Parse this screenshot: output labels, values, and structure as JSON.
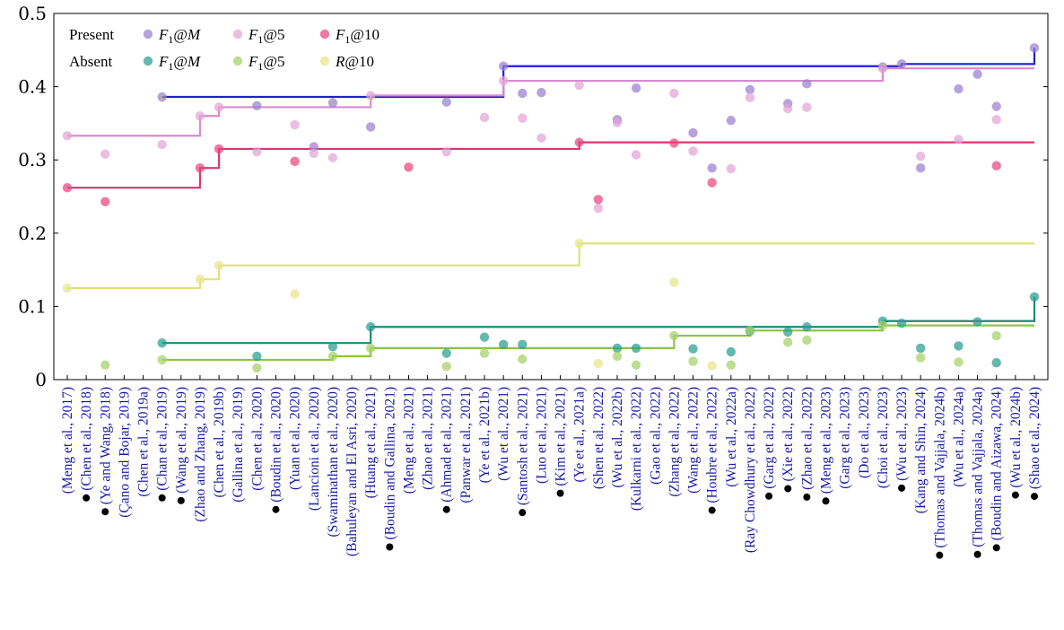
{
  "chart_data": {
    "type": "scatter",
    "title": "",
    "xlabel": "",
    "ylabel": "",
    "ylim": [
      0,
      0.5
    ],
    "yticks": [
      0,
      0.1,
      0.2,
      0.3,
      0.4,
      0.5
    ],
    "ytick_labels": [
      "0",
      "0.1",
      "0.2",
      "0.3",
      "0.4",
      "0.5"
    ],
    "grid": false,
    "legend_position": "top-left",
    "legend": {
      "rows": [
        {
          "label": "Present",
          "items": [
            {
              "series": "p_f1m",
              "text": "F1@M"
            },
            {
              "series": "p_f15",
              "text": "F1@5"
            },
            {
              "series": "p_f110",
              "text": "F1@10"
            }
          ]
        },
        {
          "label": "Absent",
          "items": [
            {
              "series": "a_f1m",
              "text": "F1@M"
            },
            {
              "series": "a_f15",
              "text": "F1@5"
            },
            {
              "series": "a_r10",
              "text": "R@10"
            }
          ]
        }
      ]
    },
    "categories": [
      "(Meng et al., 2017)",
      "(Chen et al., 2018)",
      "(Ye and Wang, 2018)",
      "(Çano and Bojar, 2019)",
      "(Chen et al., 2019a)",
      "(Chan et al., 2019)",
      "(Wang et al., 2019)",
      "(Zhao and Zhang, 2019)",
      "(Chen et al., 2019b)",
      "(Gallina et al., 2019)",
      "(Chen et al., 2020)",
      "(Boudin et al., 2020)",
      "(Yuan et al., 2020)",
      "(Lancioni et al., 2020)",
      "(Swaminathan et al., 2020)",
      "(Bahuleyan and El Asri, 2020)",
      "(Huang et al., 2021)",
      "(Boudin and Gallina, 2021)",
      "(Meng et al., 2021)",
      "(Zhao et al., 2021)",
      "(Ahmad et al., 2021)",
      "(Panwar et al., 2021)",
      "(Ye et al., 2021b)",
      "(Wu et al., 2021)",
      "(Santosh et al., 2021)",
      "(Luo et al., 2021)",
      "(Kim et al., 2021)",
      "(Ye et al., 2021a)",
      "(Shen et al., 2022)",
      "(Wu et al., 2022b)",
      "(Kulkarni et al., 2022)",
      "(Gao et al., 2022)",
      "(Zhang et al., 2022)",
      "(Wang et al., 2022)",
      "(Houbre et al., 2022)",
      "(Wu et al., 2022a)",
      "(Ray Chowdhury et al., 2022)",
      "(Garg et al., 2022)",
      "(Xie et al., 2022)",
      "(Zhao et al., 2022)",
      "(Meng et al., 2023)",
      "(Garg et al., 2023)",
      "(Do et al., 2023)",
      "(Choi et al., 2023)",
      "(Wu et al., 2023)",
      "(Kang and Shin, 2024)",
      "(Thomas and Vajjala, 2024b)",
      "(Wu et al., 2024a)",
      "(Thomas and Vajjala, 2024a)",
      "(Boudin and Aizawa, 2024)",
      "(Wu et al., 2024b)",
      "(Shao et al., 2024)"
    ],
    "marked_categories": [
      1,
      2,
      5,
      6,
      11,
      17,
      20,
      24,
      26,
      34,
      37,
      38,
      39,
      40,
      44,
      46,
      48,
      49,
      50,
      51
    ],
    "series": [
      {
        "key": "p_f1m",
        "group": "Present",
        "name": "F1@M",
        "color": "#9b7fcf",
        "points": [
          [
            5,
            0.386
          ],
          [
            10,
            0.374
          ],
          [
            13,
            0.318
          ],
          [
            14,
            0.378
          ],
          [
            16,
            0.345
          ],
          [
            20,
            0.379
          ],
          [
            23,
            0.428
          ],
          [
            24,
            0.391
          ],
          [
            25,
            0.392
          ],
          [
            29,
            0.355
          ],
          [
            30,
            0.398
          ],
          [
            33,
            0.337
          ],
          [
            34,
            0.289
          ],
          [
            35,
            0.354
          ],
          [
            36,
            0.396
          ],
          [
            38,
            0.377
          ],
          [
            39,
            0.404
          ],
          [
            43,
            0.427
          ],
          [
            44,
            0.431
          ],
          [
            45,
            0.289
          ],
          [
            47,
            0.397
          ],
          [
            48,
            0.417
          ],
          [
            49,
            0.373
          ],
          [
            51,
            0.453
          ]
        ],
        "frontier": [
          [
            5,
            0.386
          ],
          [
            23,
            0.428
          ],
          [
            44,
            0.431
          ],
          [
            51,
            0.453
          ]
        ]
      },
      {
        "key": "p_f15",
        "group": "Present",
        "name": "F1@5",
        "color": "#e3a3d6",
        "points": [
          [
            0,
            0.333
          ],
          [
            2,
            0.308
          ],
          [
            5,
            0.321
          ],
          [
            7,
            0.36
          ],
          [
            8,
            0.372
          ],
          [
            10,
            0.311
          ],
          [
            12,
            0.348
          ],
          [
            13,
            0.309
          ],
          [
            14,
            0.303
          ],
          [
            16,
            0.388
          ],
          [
            20,
            0.311
          ],
          [
            22,
            0.358
          ],
          [
            23,
            0.408
          ],
          [
            24,
            0.357
          ],
          [
            25,
            0.33
          ],
          [
            27,
            0.402
          ],
          [
            28,
            0.234
          ],
          [
            29,
            0.351
          ],
          [
            30,
            0.307
          ],
          [
            32,
            0.391
          ],
          [
            33,
            0.312
          ],
          [
            35,
            0.288
          ],
          [
            36,
            0.385
          ],
          [
            38,
            0.37
          ],
          [
            39,
            0.372
          ],
          [
            43,
            0.425
          ],
          [
            45,
            0.305
          ],
          [
            47,
            0.328
          ],
          [
            49,
            0.355
          ]
        ],
        "frontier": [
          [
            0,
            0.333
          ],
          [
            7,
            0.36
          ],
          [
            8,
            0.372
          ],
          [
            16,
            0.388
          ],
          [
            23,
            0.408
          ],
          [
            43,
            0.425
          ]
        ]
      },
      {
        "key": "p_f110",
        "group": "Present",
        "name": "F1@10",
        "color": "#e8457f",
        "points": [
          [
            0,
            0.262
          ],
          [
            2,
            0.243
          ],
          [
            7,
            0.289
          ],
          [
            8,
            0.315
          ],
          [
            12,
            0.298
          ],
          [
            18,
            0.29
          ],
          [
            27,
            0.324
          ],
          [
            28,
            0.246
          ],
          [
            32,
            0.323
          ],
          [
            34,
            0.269
          ],
          [
            49,
            0.292
          ]
        ],
        "frontier": [
          [
            0,
            0.262
          ],
          [
            7,
            0.289
          ],
          [
            8,
            0.315
          ],
          [
            27,
            0.324
          ]
        ]
      },
      {
        "key": "a_f1m",
        "group": "Absent",
        "name": "F1@M",
        "color": "#2a9d8f",
        "points": [
          [
            5,
            0.05
          ],
          [
            10,
            0.032
          ],
          [
            14,
            0.045
          ],
          [
            16,
            0.072
          ],
          [
            20,
            0.036
          ],
          [
            22,
            0.058
          ],
          [
            23,
            0.048
          ],
          [
            24,
            0.048
          ],
          [
            29,
            0.043
          ],
          [
            30,
            0.043
          ],
          [
            33,
            0.042
          ],
          [
            35,
            0.038
          ],
          [
            36,
            0.066
          ],
          [
            38,
            0.065
          ],
          [
            39,
            0.072
          ],
          [
            43,
            0.08
          ],
          [
            44,
            0.077
          ],
          [
            45,
            0.043
          ],
          [
            47,
            0.046
          ],
          [
            48,
            0.079
          ],
          [
            49,
            0.023
          ],
          [
            51,
            0.113
          ]
        ],
        "frontier": [
          [
            5,
            0.05
          ],
          [
            16,
            0.072
          ],
          [
            43,
            0.08
          ],
          [
            51,
            0.113
          ]
        ]
      },
      {
        "key": "a_f15",
        "group": "Absent",
        "name": "F1@5",
        "color": "#a3d168",
        "points": [
          [
            2,
            0.02
          ],
          [
            5,
            0.027
          ],
          [
            10,
            0.016
          ],
          [
            14,
            0.032
          ],
          [
            16,
            0.043
          ],
          [
            20,
            0.018
          ],
          [
            22,
            0.036
          ],
          [
            24,
            0.028
          ],
          [
            29,
            0.032
          ],
          [
            30,
            0.02
          ],
          [
            32,
            0.06
          ],
          [
            33,
            0.025
          ],
          [
            35,
            0.02
          ],
          [
            36,
            0.067
          ],
          [
            38,
            0.051
          ],
          [
            39,
            0.054
          ],
          [
            43,
            0.074
          ],
          [
            45,
            0.03
          ],
          [
            47,
            0.024
          ],
          [
            49,
            0.06
          ]
        ],
        "frontier": [
          [
            5,
            0.027
          ],
          [
            14,
            0.032
          ],
          [
            16,
            0.043
          ],
          [
            32,
            0.06
          ],
          [
            36,
            0.067
          ],
          [
            43,
            0.074
          ]
        ]
      },
      {
        "key": "a_r10",
        "group": "Absent",
        "name": "R@10",
        "color": "#e6e48a",
        "points": [
          [
            0,
            0.125
          ],
          [
            7,
            0.137
          ],
          [
            8,
            0.156
          ],
          [
            12,
            0.117
          ],
          [
            27,
            0.186
          ],
          [
            28,
            0.022
          ],
          [
            32,
            0.133
          ],
          [
            34,
            0.019
          ]
        ],
        "frontier": [
          [
            0,
            0.125
          ],
          [
            7,
            0.137
          ],
          [
            8,
            0.156
          ],
          [
            27,
            0.186
          ]
        ]
      }
    ],
    "line_colors": {
      "p_f1m": "#1f1fd6",
      "p_f15": "#d98ad0",
      "p_f110": "#e0336f",
      "a_f1m": "#1a8a74",
      "a_f15": "#8cc63f",
      "a_r10": "#e1e078"
    }
  }
}
